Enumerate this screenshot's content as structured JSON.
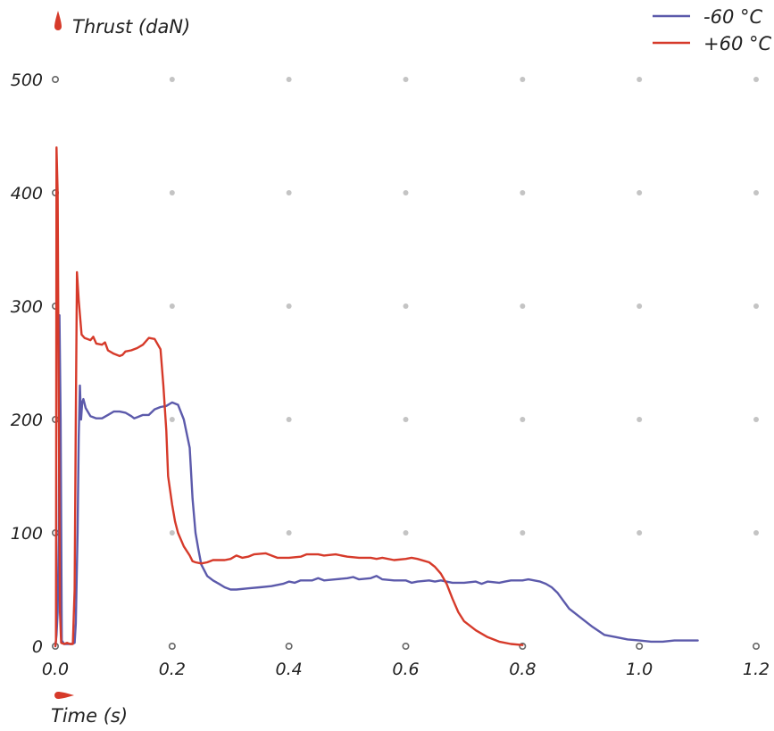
{
  "chart_data": {
    "type": "line",
    "title": "",
    "xlabel": "Time (s)",
    "ylabel": "Thrust (daN)",
    "xlim": [
      0,
      1.2
    ],
    "ylim": [
      0,
      500
    ],
    "xticks": [
      "0.0",
      "0.2",
      "0.4",
      "0.6",
      "0.8",
      "1.0",
      "1.2"
    ],
    "yticks": [
      "0",
      "100",
      "200",
      "300",
      "400",
      "500"
    ],
    "grid": "dots",
    "legend": "top-right",
    "colors": {
      "accent": "#d63a2a",
      "grid_dot": "#c4c4c4",
      "axis_marker": "#666666"
    },
    "series": [
      {
        "name": "-60 °C",
        "color": "#5c5aab",
        "points": [
          [
            0.0,
            0
          ],
          [
            0.002,
            10
          ],
          [
            0.004,
            30
          ],
          [
            0.006,
            100
          ],
          [
            0.007,
            292
          ],
          [
            0.009,
            200
          ],
          [
            0.011,
            5
          ],
          [
            0.015,
            2
          ],
          [
            0.02,
            2
          ],
          [
            0.028,
            2
          ],
          [
            0.033,
            3
          ],
          [
            0.035,
            20
          ],
          [
            0.038,
            100
          ],
          [
            0.04,
            185
          ],
          [
            0.042,
            230
          ],
          [
            0.044,
            200
          ],
          [
            0.046,
            215
          ],
          [
            0.048,
            218
          ],
          [
            0.052,
            210
          ],
          [
            0.06,
            203
          ],
          [
            0.07,
            201
          ],
          [
            0.08,
            201
          ],
          [
            0.09,
            204
          ],
          [
            0.1,
            207
          ],
          [
            0.11,
            207
          ],
          [
            0.12,
            206
          ],
          [
            0.13,
            203
          ],
          [
            0.135,
            201
          ],
          [
            0.14,
            202
          ],
          [
            0.15,
            204
          ],
          [
            0.16,
            204
          ],
          [
            0.17,
            209
          ],
          [
            0.18,
            211
          ],
          [
            0.19,
            212
          ],
          [
            0.2,
            215
          ],
          [
            0.21,
            213
          ],
          [
            0.22,
            200
          ],
          [
            0.23,
            175
          ],
          [
            0.235,
            130
          ],
          [
            0.24,
            100
          ],
          [
            0.245,
            85
          ],
          [
            0.25,
            72
          ],
          [
            0.26,
            62
          ],
          [
            0.27,
            58
          ],
          [
            0.28,
            55
          ],
          [
            0.29,
            52
          ],
          [
            0.3,
            50
          ],
          [
            0.31,
            50
          ],
          [
            0.33,
            51
          ],
          [
            0.35,
            52
          ],
          [
            0.37,
            53
          ],
          [
            0.39,
            55
          ],
          [
            0.4,
            57
          ],
          [
            0.41,
            56
          ],
          [
            0.42,
            58
          ],
          [
            0.44,
            58
          ],
          [
            0.45,
            60
          ],
          [
            0.46,
            58
          ],
          [
            0.48,
            59
          ],
          [
            0.5,
            60
          ],
          [
            0.51,
            61
          ],
          [
            0.52,
            59
          ],
          [
            0.54,
            60
          ],
          [
            0.55,
            62
          ],
          [
            0.56,
            59
          ],
          [
            0.58,
            58
          ],
          [
            0.6,
            58
          ],
          [
            0.61,
            56
          ],
          [
            0.62,
            57
          ],
          [
            0.64,
            58
          ],
          [
            0.65,
            57
          ],
          [
            0.66,
            58
          ],
          [
            0.68,
            56
          ],
          [
            0.7,
            56
          ],
          [
            0.72,
            57
          ],
          [
            0.73,
            55
          ],
          [
            0.74,
            57
          ],
          [
            0.76,
            56
          ],
          [
            0.77,
            57
          ],
          [
            0.78,
            58
          ],
          [
            0.79,
            58
          ],
          [
            0.8,
            58
          ],
          [
            0.81,
            59
          ],
          [
            0.82,
            58
          ],
          [
            0.83,
            57
          ],
          [
            0.84,
            55
          ],
          [
            0.85,
            52
          ],
          [
            0.86,
            47
          ],
          [
            0.87,
            40
          ],
          [
            0.88,
            33
          ],
          [
            0.9,
            25
          ],
          [
            0.92,
            17
          ],
          [
            0.94,
            10
          ],
          [
            0.96,
            8
          ],
          [
            0.98,
            6
          ],
          [
            1.0,
            5
          ],
          [
            1.02,
            4
          ],
          [
            1.04,
            4
          ],
          [
            1.06,
            5
          ],
          [
            1.08,
            5
          ],
          [
            1.1,
            5
          ]
        ]
      },
      {
        "name": "+60 °C",
        "color": "#d63a2a",
        "points": [
          [
            0.0,
            0
          ],
          [
            0.001,
            5
          ],
          [
            0.002,
            440
          ],
          [
            0.004,
            400
          ],
          [
            0.006,
            200
          ],
          [
            0.008,
            30
          ],
          [
            0.01,
            3
          ],
          [
            0.015,
            2
          ],
          [
            0.02,
            3
          ],
          [
            0.025,
            2
          ],
          [
            0.03,
            2
          ],
          [
            0.033,
            50
          ],
          [
            0.035,
            200
          ],
          [
            0.037,
            330
          ],
          [
            0.04,
            305
          ],
          [
            0.045,
            275
          ],
          [
            0.05,
            272
          ],
          [
            0.06,
            270
          ],
          [
            0.065,
            273
          ],
          [
            0.07,
            267
          ],
          [
            0.08,
            266
          ],
          [
            0.085,
            268
          ],
          [
            0.09,
            261
          ],
          [
            0.1,
            258
          ],
          [
            0.11,
            256
          ],
          [
            0.115,
            257
          ],
          [
            0.12,
            260
          ],
          [
            0.13,
            261
          ],
          [
            0.14,
            263
          ],
          [
            0.15,
            266
          ],
          [
            0.16,
            272
          ],
          [
            0.17,
            271
          ],
          [
            0.18,
            262
          ],
          [
            0.185,
            230
          ],
          [
            0.19,
            190
          ],
          [
            0.193,
            150
          ],
          [
            0.2,
            125
          ],
          [
            0.205,
            110
          ],
          [
            0.21,
            100
          ],
          [
            0.22,
            88
          ],
          [
            0.23,
            80
          ],
          [
            0.235,
            75
          ],
          [
            0.24,
            74
          ],
          [
            0.25,
            73
          ],
          [
            0.26,
            74
          ],
          [
            0.27,
            76
          ],
          [
            0.28,
            76
          ],
          [
            0.29,
            76
          ],
          [
            0.3,
            77
          ],
          [
            0.31,
            80
          ],
          [
            0.32,
            78
          ],
          [
            0.33,
            79
          ],
          [
            0.34,
            81
          ],
          [
            0.36,
            82
          ],
          [
            0.37,
            80
          ],
          [
            0.38,
            78
          ],
          [
            0.4,
            78
          ],
          [
            0.42,
            79
          ],
          [
            0.43,
            81
          ],
          [
            0.45,
            81
          ],
          [
            0.46,
            80
          ],
          [
            0.48,
            81
          ],
          [
            0.5,
            79
          ],
          [
            0.52,
            78
          ],
          [
            0.54,
            78
          ],
          [
            0.55,
            77
          ],
          [
            0.56,
            78
          ],
          [
            0.58,
            76
          ],
          [
            0.6,
            77
          ],
          [
            0.61,
            78
          ],
          [
            0.62,
            77
          ],
          [
            0.64,
            74
          ],
          [
            0.65,
            70
          ],
          [
            0.66,
            64
          ],
          [
            0.67,
            55
          ],
          [
            0.68,
            42
          ],
          [
            0.69,
            30
          ],
          [
            0.7,
            22
          ],
          [
            0.72,
            14
          ],
          [
            0.74,
            8
          ],
          [
            0.76,
            4
          ],
          [
            0.78,
            2
          ],
          [
            0.8,
            1
          ]
        ]
      }
    ]
  }
}
